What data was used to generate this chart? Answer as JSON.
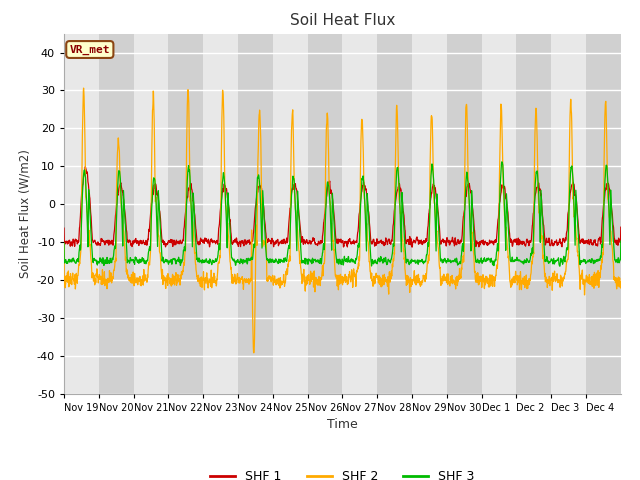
{
  "title": "Soil Heat Flux",
  "xlabel": "Time",
  "ylabel": "Soil Heat Flux (W/m2)",
  "ylim": [
    -50,
    45
  ],
  "yticks": [
    -50,
    -40,
    -30,
    -20,
    -10,
    0,
    10,
    20,
    30,
    40
  ],
  "colors": {
    "SHF 1": "#cc0000",
    "SHF 2": "#ffaa00",
    "SHF 3": "#00bb00"
  },
  "legend_labels": [
    "SHF 1",
    "SHF 2",
    "SHF 3"
  ],
  "watermark": "VR_met",
  "n_days": 16,
  "xtick_labels": [
    "Nov 19",
    "Nov 20",
    "Nov 21",
    "Nov 22",
    "Nov 23",
    "Nov 24",
    "Nov 25",
    "Nov 26",
    "Nov 27",
    "Nov 28",
    "Nov 29",
    "Nov 30",
    "Dec 1",
    "Dec 2",
    "Dec 3",
    "Dec 4"
  ],
  "points_per_day": 144,
  "band_light": "#e8e8e8",
  "band_dark": "#d0d0d0",
  "fig_bg": "#ffffff",
  "plot_bg": "#ffffff"
}
